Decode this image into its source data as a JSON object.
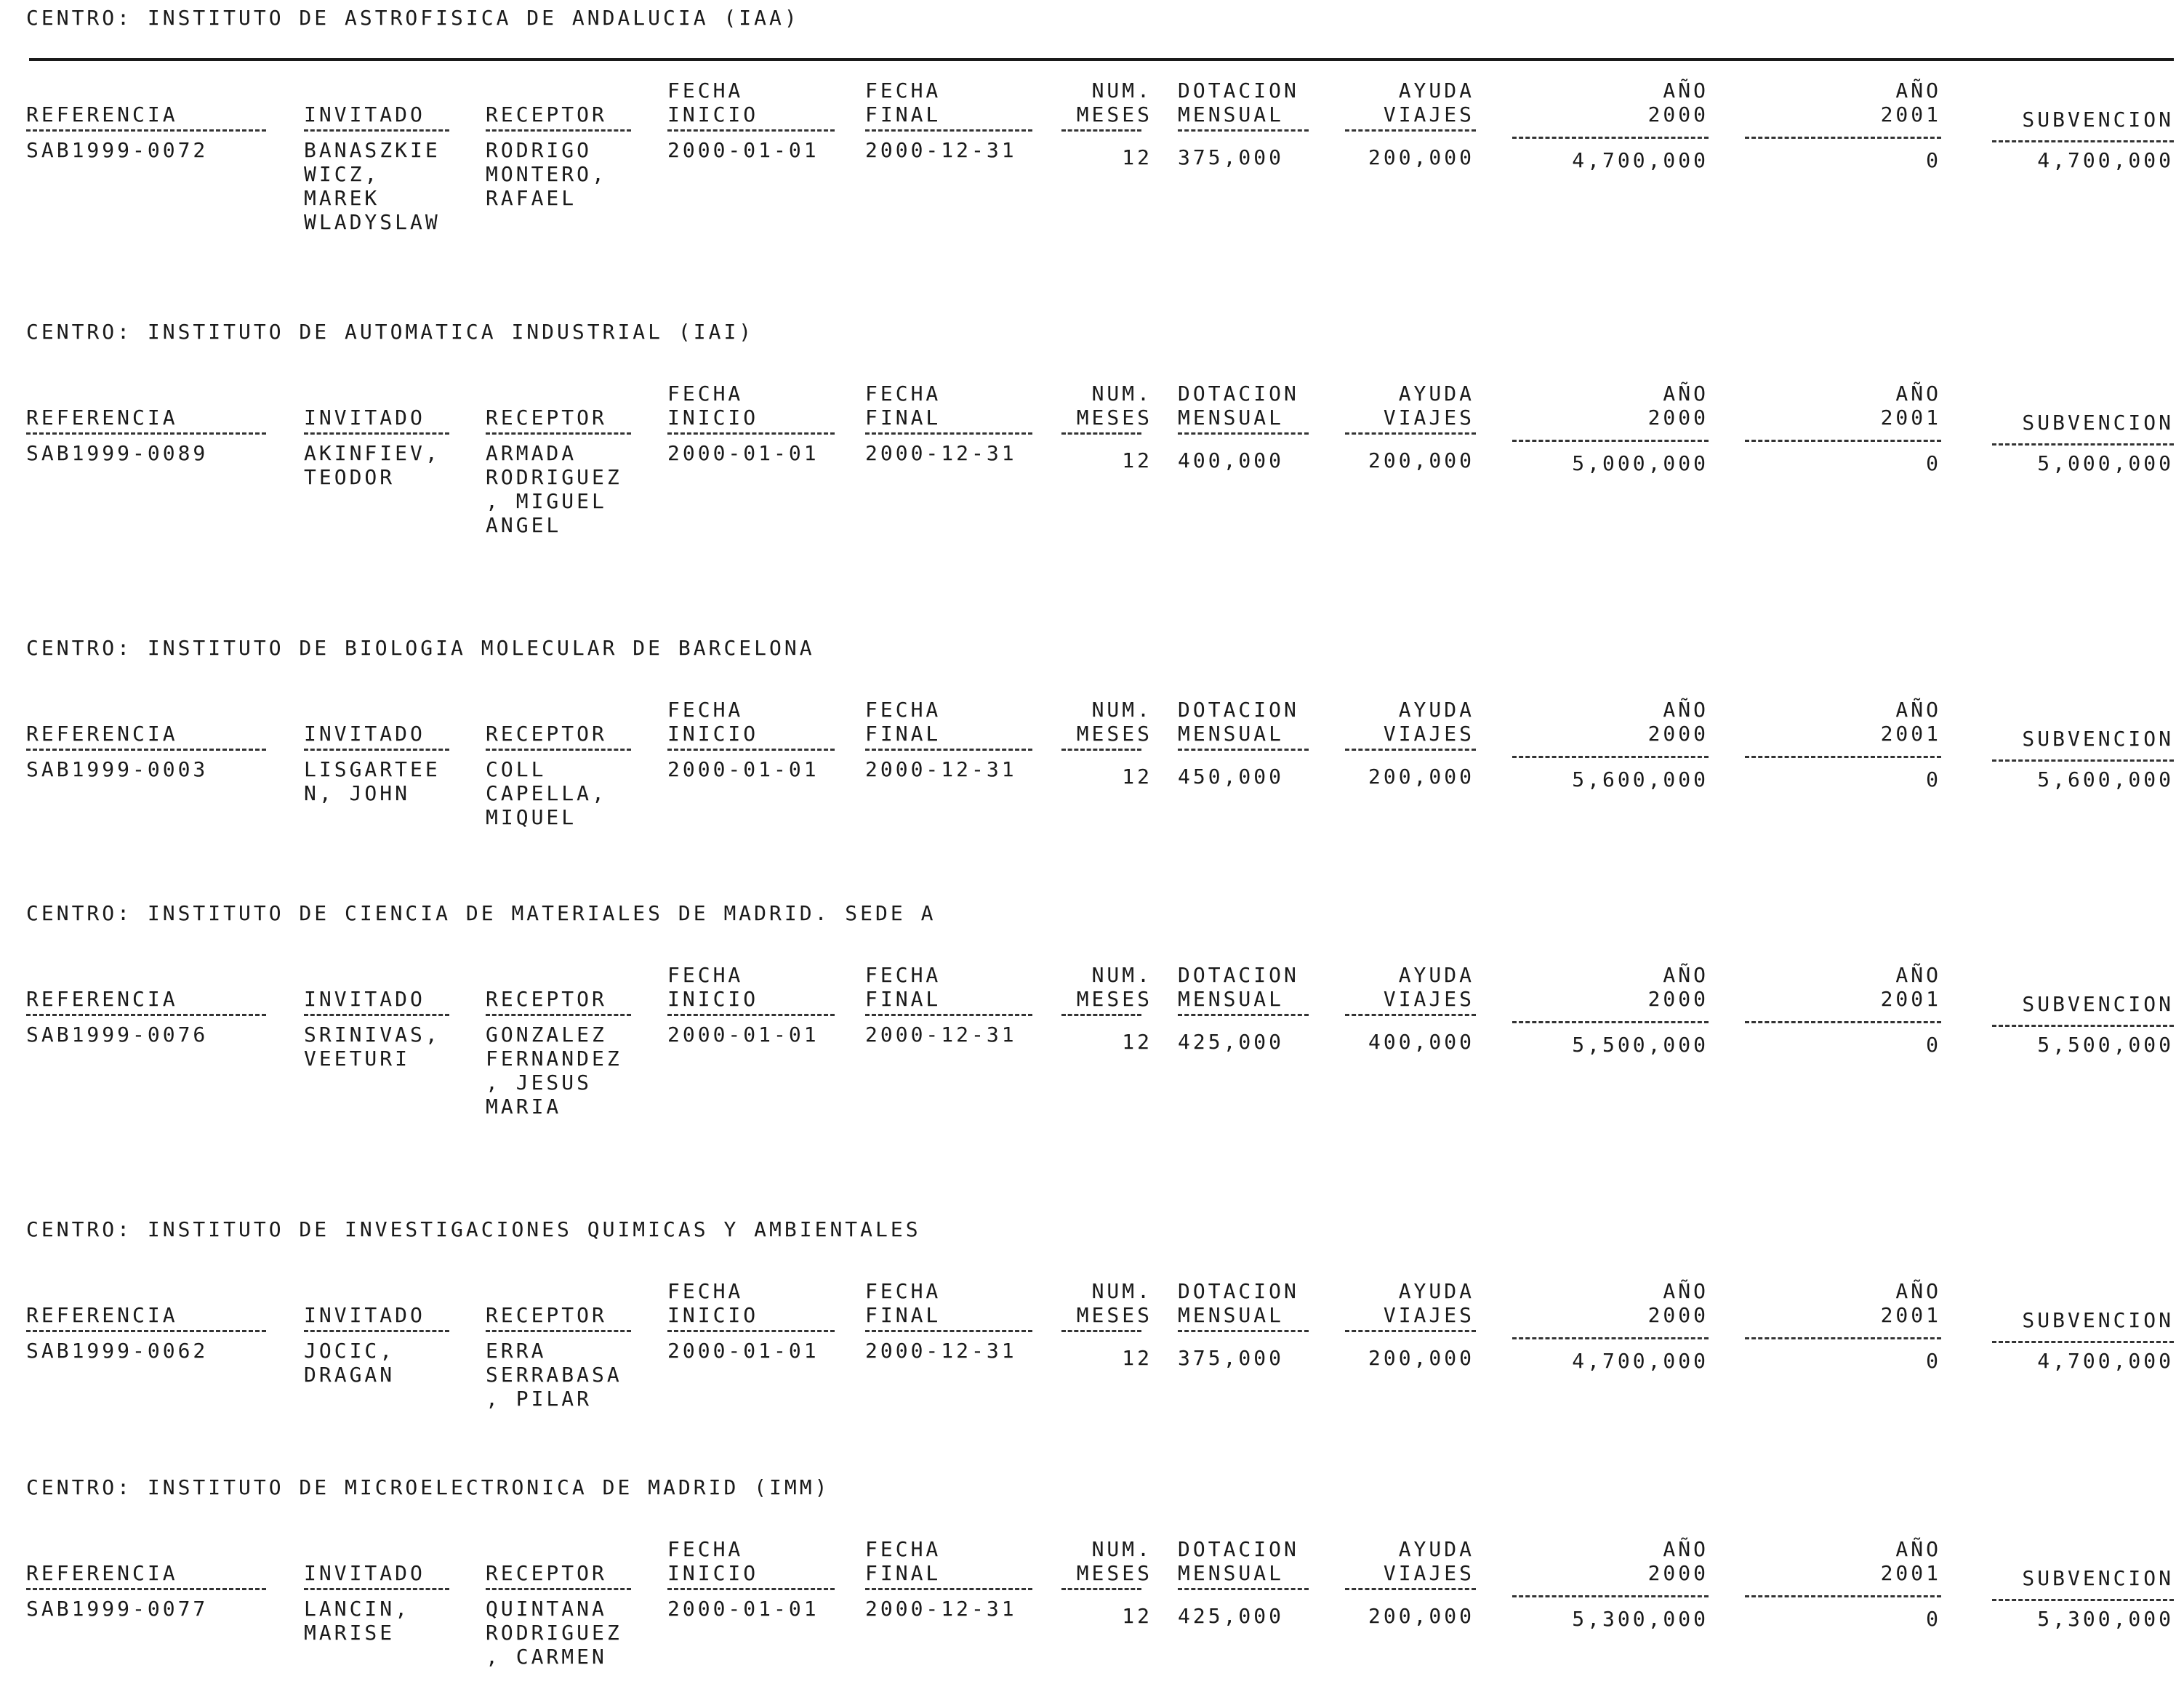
{
  "columns": {
    "referencia": "REFERENCIA",
    "invitado": "INVITADO",
    "receptor": "RECEPTOR",
    "fecha_inicio": "FECHA\nINICIO",
    "fecha_final": "FECHA\nFINAL",
    "num_meses": "NUM.\nMESES",
    "dotacion_mensual": "DOTACION\nMENSUAL",
    "ayuda_viajes": "AYUDA\nVIAJES",
    "ano_2000": "AÑO\n2000",
    "ano_2001": "AÑO\n2001",
    "subvencion": "SUBVENCION"
  },
  "sections": [
    {
      "centro": "CENTRO: INSTITUTO DE ASTROFISICA DE ANDALUCIA (IAA)",
      "referencia_header": "REFERENCIA",
      "row": {
        "referencia": "SAB1999-0072",
        "invitado": "BANASZKIE\nWICZ,\nMAREK\nWLADYSLAW",
        "receptor": "RODRIGO\nMONTERO,\nRAFAEL",
        "fecha_inicio": "2000-01-01",
        "fecha_final": "2000-12-31",
        "num_meses": "12",
        "dotacion_mensual": "375,000",
        "ayuda_viajes": "200,000",
        "ano_2000": "4,700,000",
        "ano_2001": "0",
        "subvencion": "4,700,000"
      }
    },
    {
      "centro": "CENTRO: INSTITUTO DE AUTOMATICA INDUSTRIAL (IAI)",
      "referencia_header": "REFERENCIA",
      "row": {
        "referencia": "SAB1999-0089",
        "invitado": "AKINFIEV,\nTEODOR",
        "receptor": "ARMADA\nRODRIGUEZ\n, MIGUEL\nANGEL",
        "fecha_inicio": "2000-01-01",
        "fecha_final": "2000-12-31",
        "num_meses": "12",
        "dotacion_mensual": "400,000",
        "ayuda_viajes": "200,000",
        "ano_2000": "5,000,000",
        "ano_2001": "0",
        "subvencion": "5,000,000"
      }
    },
    {
      "centro": "CENTRO: INSTITUTO DE BIOLOGIA MOLECULAR DE BARCELONA",
      "referencia_header": "REFERENCIA",
      "row": {
        "referencia": "SAB1999-0003",
        "invitado": "LISGARTEE\nN, JOHN",
        "receptor": "COLL\nCAPELLA,\nMIQUEL",
        "fecha_inicio": "2000-01-01",
        "fecha_final": "2000-12-31",
        "num_meses": "12",
        "dotacion_mensual": "450,000",
        "ayuda_viajes": "200,000",
        "ano_2000": "5,600,000",
        "ano_2001": "0",
        "subvencion": "5,600,000"
      }
    },
    {
      "centro": "CENTRO: INSTITUTO DE CIENCIA DE MATERIALES DE MADRID. SEDE A",
      "referencia_header": "REFERENCIA",
      "row": {
        "referencia": "SAB1999-0076",
        "invitado": "SRINIVAS,\nVEETURI",
        "receptor": "GONZALEZ\nFERNANDEZ\n, JESUS\nMARIA",
        "fecha_inicio": "2000-01-01",
        "fecha_final": "2000-12-31",
        "num_meses": "12",
        "dotacion_mensual": "425,000",
        "ayuda_viajes": "400,000",
        "ano_2000": "5,500,000",
        "ano_2001": "0",
        "subvencion": "5,500,000"
      }
    },
    {
      "centro": "CENTRO: INSTITUTO DE INVESTIGACIONES QUIMICAS Y AMBIENTALES",
      "referencia_header": "REFERENCIA",
      "row": {
        "referencia": "SAB1999-0062",
        "invitado": "JOCIC,\nDRAGAN",
        "receptor": "ERRA\nSERRABASA\n, PILAR",
        "fecha_inicio": "2000-01-01",
        "fecha_final": "2000-12-31",
        "num_meses": "12",
        "dotacion_mensual": "375,000",
        "ayuda_viajes": "200,000",
        "ano_2000": "4,700,000",
        "ano_2001": "0",
        "subvencion": "4,700,000"
      }
    },
    {
      "centro": "CENTRO: INSTITUTO DE MICROELECTRONICA DE MADRID (IMM)",
      "referencia_header": "REFERENCIA",
      "row": {
        "referencia": "SAB1999-0077",
        "invitado": "LANCIN,\nMARISE",
        "receptor": "QUINTANA\nRODRIGUEZ\n, CARMEN",
        "fecha_inicio": "2000-01-01",
        "fecha_final": "2000-12-31",
        "num_meses": "12",
        "dotacion_mensual": "425,000",
        "ayuda_viajes": "200,000",
        "ano_2000": "5,300,000",
        "ano_2001": "0",
        "subvencion": "5,300,000"
      }
    }
  ]
}
